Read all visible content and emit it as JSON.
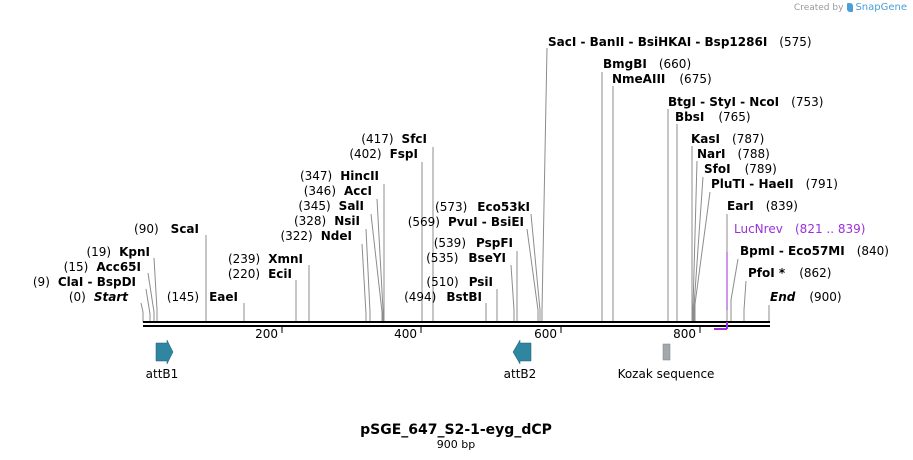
{
  "branding": {
    "created_by": "Created by",
    "product": "SnapGene"
  },
  "map": {
    "name": "pSGE_647_S2-1-eyg_dCP",
    "length_label": "900 bp",
    "length": 900,
    "ticks": [
      "200",
      "400",
      "600",
      "800"
    ]
  },
  "sites": [
    {
      "name": "SacI  -  BanII  -  BsiHKAI  -  Bsp1286I",
      "pos": "(575)",
      "bp": 575
    },
    {
      "name": "BmgBI",
      "pos": "(660)",
      "bp": 660
    },
    {
      "name": "NmeAIII",
      "pos": "(675)",
      "bp": 675
    },
    {
      "name": "BtgI  -  StyI  -  NcoI",
      "pos": "(753)",
      "bp": 753
    },
    {
      "name": "BbsI",
      "pos": "(765)",
      "bp": 765
    },
    {
      "name": "KasI",
      "pos": "(787)",
      "bp": 787
    },
    {
      "name": "NarI",
      "pos": "(788)",
      "bp": 788
    },
    {
      "name": "SfoI",
      "pos": "(789)",
      "bp": 789
    },
    {
      "name": "PluTI  -  HaeII",
      "pos": "(791)",
      "bp": 791
    },
    {
      "name": "EarI",
      "pos": "(839)",
      "bp": 839
    },
    {
      "name": "BpmI  -  Eco57MI",
      "pos": "(840)",
      "bp": 840
    },
    {
      "name": "PfoI *",
      "pos": "(862)",
      "bp": 862
    },
    {
      "name": "End",
      "pos": "(900)",
      "bp": 900
    },
    {
      "name": "SfcI",
      "pos": "(417)",
      "bp": 417
    },
    {
      "name": "FspI",
      "pos": "(402)",
      "bp": 402
    },
    {
      "name": "HincII",
      "pos": "(347)",
      "bp": 347
    },
    {
      "name": "AccI",
      "pos": "(346)",
      "bp": 346
    },
    {
      "name": "SalI",
      "pos": "(345)",
      "bp": 345
    },
    {
      "name": "NsiI",
      "pos": "(328)",
      "bp": 328
    },
    {
      "name": "NdeI",
      "pos": "(322)",
      "bp": 322
    },
    {
      "name": "XmnI",
      "pos": "(239)",
      "bp": 239
    },
    {
      "name": "EciI",
      "pos": "(220)",
      "bp": 220
    },
    {
      "name": "ScaI",
      "pos": "(90)",
      "bp": 90
    },
    {
      "name": "EaeI",
      "pos": "(145)",
      "bp": 145
    },
    {
      "name": "KpnI",
      "pos": "(19)",
      "bp": 19
    },
    {
      "name": "Acc65I",
      "pos": "(15)",
      "bp": 15
    },
    {
      "name": "ClaI  -  BspDI",
      "pos": "(9)",
      "bp": 9
    },
    {
      "name": "Start",
      "pos": "(0)",
      "bp": 0
    },
    {
      "name": "Eco53kI",
      "pos": "(573)",
      "bp": 573
    },
    {
      "name": "PvuI  -  BsiEI",
      "pos": "(569)",
      "bp": 569
    },
    {
      "name": "PspFI",
      "pos": "(539)",
      "bp": 539
    },
    {
      "name": "BseYI",
      "pos": "(535)",
      "bp": 535
    },
    {
      "name": "PsiI",
      "pos": "(510)",
      "bp": 510
    },
    {
      "name": "BstBI",
      "pos": "(494)",
      "bp": 494
    }
  ],
  "primer": {
    "name": "LucNrev",
    "range": "(821 .. 839)",
    "start": 821,
    "end": 839,
    "color": "#9b30d9"
  },
  "features": [
    {
      "name": "attB1",
      "start": 22,
      "end": 43,
      "direction": "forward",
      "color": "#2e86a0"
    },
    {
      "name": "attB2",
      "start": 529,
      "end": 555,
      "direction": "reverse",
      "color": "#2e86a0"
    },
    {
      "name": "Kozak sequence",
      "start": 747,
      "end": 757,
      "direction": "none",
      "color": "#a3a8ad"
    }
  ]
}
